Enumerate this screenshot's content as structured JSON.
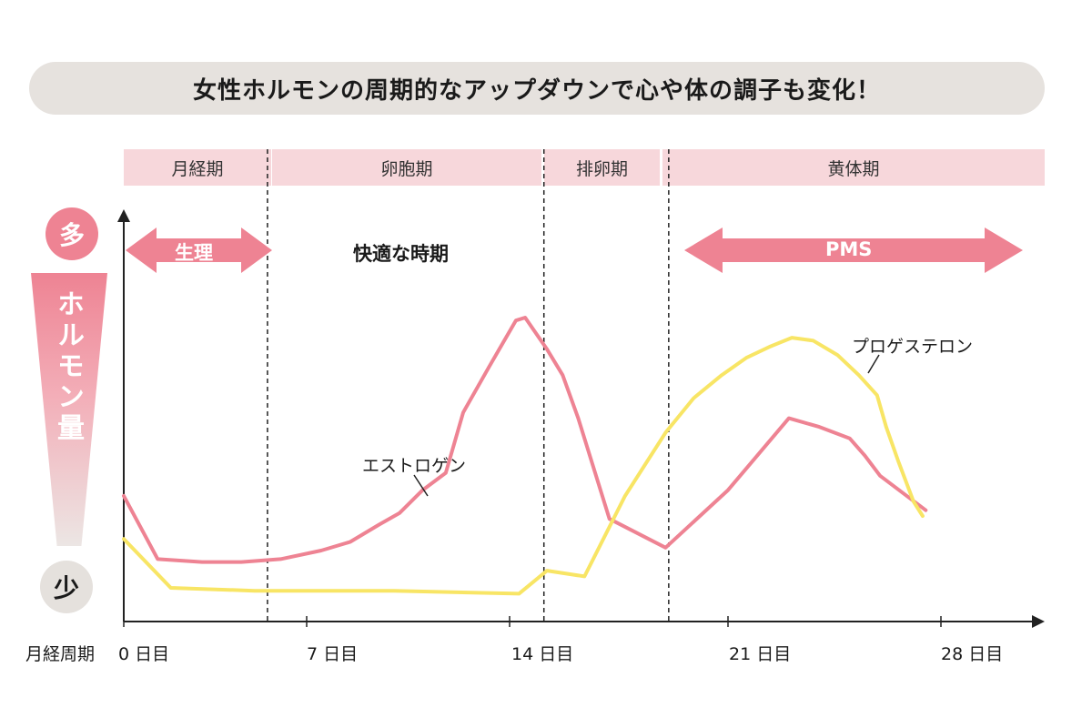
{
  "title": "女性ホルモンの周期的なアップダウンで心や体の調子も変化！",
  "phases": [
    {
      "label": "月経期"
    },
    {
      "label": "卵胞期"
    },
    {
      "label": "排卵期"
    },
    {
      "label": "黄体期"
    }
  ],
  "yaxis": {
    "label": "ホルモン量",
    "high": "多",
    "low": "少"
  },
  "xaxis": {
    "label": "月経周期"
  },
  "arrows": {
    "menstruation": "生理",
    "pms": "PMS"
  },
  "comfort_label": "快適な時期",
  "colors": {
    "estrogen": "#ee8393",
    "progesterone": "#f8e565",
    "phase_band": "#f7d7db",
    "arrow": "#ee8393"
  },
  "chart_data": {
    "type": "line",
    "xlabel": "月経周期",
    "ylabel": "ホルモン量",
    "xlim": [
      0,
      30
    ],
    "ylim": [
      0,
      10
    ],
    "grid": false,
    "ticks": [
      {
        "x": 0,
        "label": "0 日目"
      },
      {
        "x": 7,
        "label": "7 日目"
      },
      {
        "x": 14,
        "label": "14 日目"
      },
      {
        "x": 21,
        "label": "21 日目"
      },
      {
        "x": 28,
        "label": "28 日目"
      }
    ],
    "phase_boundaries": [
      5.5,
      15.1,
      19.1
    ],
    "series": [
      {
        "name": "エストロゲン",
        "x": [
          0,
          1.3,
          3,
          4.5,
          6,
          7.5,
          8.5,
          9.5,
          10.2,
          11,
          11.8,
          12.4,
          13.3,
          14.2,
          14.5,
          15.2,
          15.7,
          16.2,
          17.2,
          19.0,
          21.0,
          23.0,
          24.0,
          25.0,
          25.5,
          26.0,
          27.5
        ],
        "y": [
          3.8,
          1.6,
          1.5,
          1.5,
          1.6,
          1.9,
          2.2,
          2.8,
          3.2,
          4.0,
          4.6,
          6.7,
          8.3,
          9.9,
          10.0,
          8.9,
          8.0,
          6.5,
          3.0,
          2.0,
          4.0,
          6.5,
          6.2,
          5.8,
          5.2,
          4.5,
          3.3
        ]
      },
      {
        "name": "プロゲステロン",
        "x": [
          0,
          1.8,
          5,
          10,
          14.3,
          15.2,
          16.4,
          17.7,
          19.0,
          19.9,
          20.8,
          21.6,
          22.4,
          23.1,
          23.8,
          24.6,
          25.3,
          25.9,
          26.2,
          26.6,
          27.1,
          27.4
        ],
        "y": [
          2.3,
          0.6,
          0.5,
          0.5,
          0.4,
          1.2,
          1.0,
          3.8,
          6.0,
          7.2,
          8.0,
          8.6,
          9.0,
          9.3,
          9.2,
          8.7,
          8.0,
          7.3,
          6.2,
          5.0,
          3.6,
          3.1
        ]
      }
    ]
  }
}
